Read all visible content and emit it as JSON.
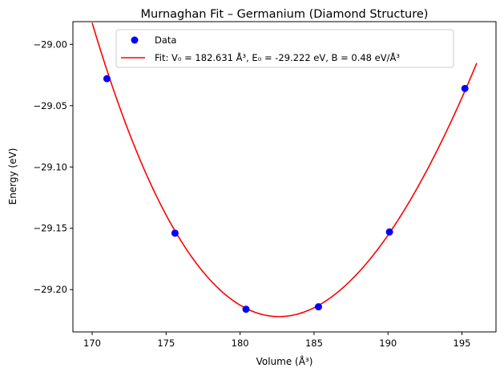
{
  "chart_data": {
    "type": "scatter",
    "title": "Murnaghan Fit – Germanium (Diamond Structure)",
    "xlabel": "Volume (Å³)",
    "ylabel": "Energy (eV)",
    "xlim": [
      168.7,
      197.3
    ],
    "ylim": [
      -29.2345,
      -28.9815
    ],
    "xticks": [
      170,
      175,
      180,
      185,
      190,
      195
    ],
    "xtick_labels": [
      "170",
      "175",
      "180",
      "185",
      "190",
      "195"
    ],
    "yticks": [
      -29.0,
      -29.05,
      -29.1,
      -29.15,
      -29.2
    ],
    "ytick_labels": [
      "−29.00",
      "−29.05",
      "−29.10",
      "−29.15",
      "−29.20"
    ],
    "grid": false,
    "legend_position": "top-center",
    "series": [
      {
        "name": "Data",
        "kind": "points",
        "color": "#0000ff",
        "x": [
          171.0,
          175.6,
          180.4,
          185.3,
          190.1,
          195.2
        ],
        "y": [
          -29.028,
          -29.154,
          -29.216,
          -29.214,
          -29.153,
          -29.036
        ]
      },
      {
        "name": "Fit: V₀ = 182.631 Å³, E₀ = -29.222 eV, B = 0.48 eV/Å³",
        "kind": "line",
        "color": "#ff0000",
        "model": "murnaghan",
        "params": {
          "V0": 182.631,
          "E0": -29.222,
          "B": 0.48,
          "Bp": 4.5
        },
        "x_range": [
          170.0,
          196.0
        ]
      }
    ]
  }
}
